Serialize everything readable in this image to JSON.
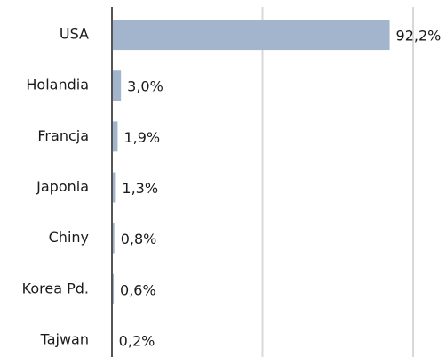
{
  "chart_data": {
    "type": "bar",
    "orientation": "horizontal",
    "categories": [
      "USA",
      "Holandia",
      "Francja",
      "Japonia",
      "Chiny",
      "Korea Pd.",
      "Tajwan"
    ],
    "values": [
      92.2,
      3.0,
      1.9,
      1.3,
      0.8,
      0.6,
      0.2
    ],
    "value_labels": [
      "92,2%",
      "3,0%",
      "1,9%",
      "1,3%",
      "0,8%",
      "0,6%",
      "0,2%"
    ],
    "color": "#a3b5cc",
    "xlim": [
      0,
      100
    ],
    "xticks": [
      0,
      50,
      100
    ],
    "grid": true
  }
}
